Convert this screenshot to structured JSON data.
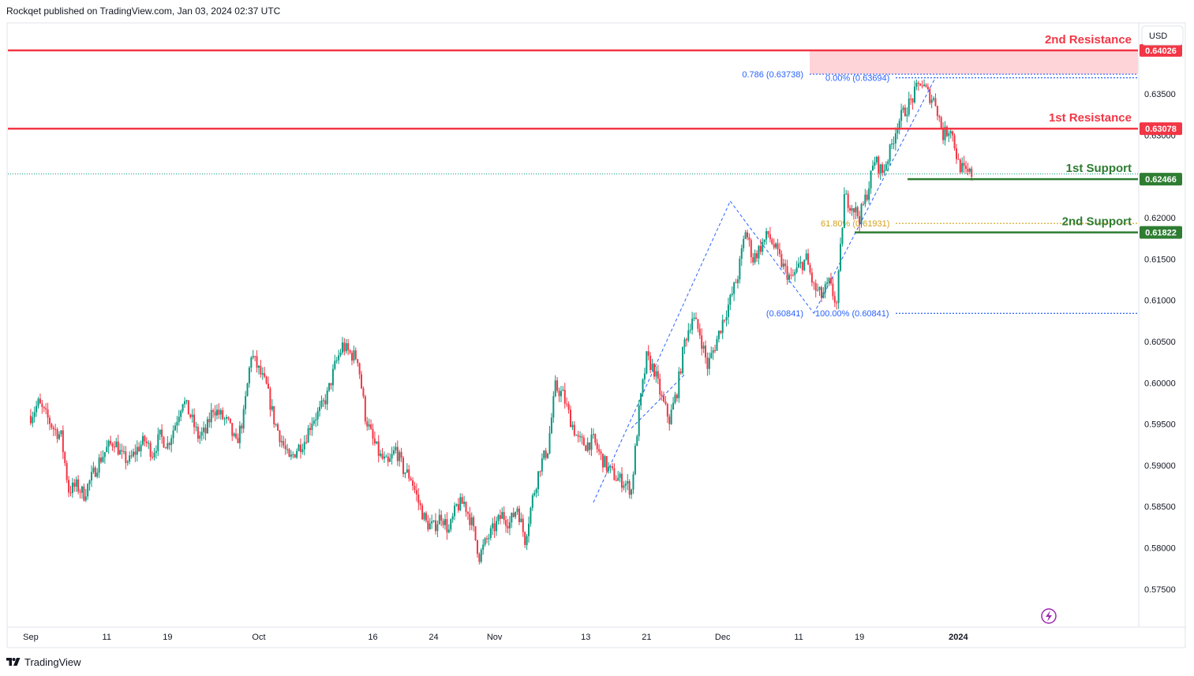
{
  "header": {
    "published_text": "Rockqet published on TradingView.com, Jan 03, 2024 02:37 UTC"
  },
  "footer": {
    "brand": "TradingView"
  },
  "currency_button": "USD",
  "colors": {
    "up": "#089981",
    "down": "#f23645",
    "resistance": "#f23645",
    "support": "#2e7d32",
    "fib_blue": "#2962ff",
    "fib_gold": "#d4a017",
    "zone_fill": "#ffcdd2"
  },
  "icons": {
    "lightning": "lightning-icon",
    "logo": "tradingview-logo-icon"
  },
  "chart_data": {
    "type": "candlestick",
    "symbol_quote": "USD",
    "ylim": [
      0.5705,
      0.6435
    ],
    "y_ticks": [
      "0.63500",
      "0.63000",
      "0.62000",
      "0.61500",
      "0.61000",
      "0.60500",
      "0.60000",
      "0.59500",
      "0.59000",
      "0.58500",
      "0.58000",
      "0.57500"
    ],
    "x_labels": [
      {
        "label": "Sep",
        "date": "2023-09-01"
      },
      {
        "label": "11",
        "date": "2023-09-11"
      },
      {
        "label": "19",
        "date": "2023-09-19"
      },
      {
        "label": "Oct",
        "date": "2023-10-01"
      },
      {
        "label": "16",
        "date": "2023-10-16"
      },
      {
        "label": "24",
        "date": "2023-10-24"
      },
      {
        "label": "Nov",
        "date": "2023-11-01"
      },
      {
        "label": "13",
        "date": "2023-11-13"
      },
      {
        "label": "21",
        "date": "2023-11-21"
      },
      {
        "label": "Dec",
        "date": "2023-12-01"
      },
      {
        "label": "11",
        "date": "2023-12-11"
      },
      {
        "label": "19",
        "date": "2023-12-19"
      },
      {
        "label": "2024",
        "date": "2024-01-01"
      }
    ],
    "levels": [
      {
        "name": "2nd Resistance",
        "value": 0.64026,
        "badge": "0.64026",
        "kind": "resistance"
      },
      {
        "name": "1st Resistance",
        "value": 0.63078,
        "badge": "0.63078",
        "kind": "resistance"
      },
      {
        "name": "1st Support",
        "value": 0.62466,
        "badge": "0.62466",
        "kind": "support"
      },
      {
        "name": "2nd Support",
        "value": 0.61822,
        "badge": "0.61822",
        "kind": "support"
      }
    ],
    "zone": {
      "from": 0.63738,
      "to": 0.64026
    },
    "fib_levels": [
      {
        "label": "0.786 (0.63738)",
        "value": 0.63738
      },
      {
        "label": "0.00% (0.63694)",
        "value": 0.63694
      },
      {
        "label": "61.80% (0.61931)",
        "value": 0.61931
      },
      {
        "label": "(0.60841)",
        "value": 0.60841
      },
      {
        "label": "100.00% (0.60841)",
        "value": 0.60841
      }
    ],
    "last_price": 0.6253,
    "path": [
      [
        "2023-09-01",
        0.596
      ],
      [
        "2023-09-02",
        0.5975
      ],
      [
        "2023-09-03",
        0.596
      ],
      [
        "2023-09-04",
        0.5945
      ],
      [
        "2023-09-05",
        0.5935
      ],
      [
        "2023-09-06",
        0.587
      ],
      [
        "2023-09-07",
        0.5875
      ],
      [
        "2023-09-08",
        0.5865
      ],
      [
        "2023-09-09",
        0.5885
      ],
      [
        "2023-09-10",
        0.5905
      ],
      [
        "2023-09-11",
        0.592
      ],
      [
        "2023-09-12",
        0.593
      ],
      [
        "2023-09-13",
        0.591
      ],
      [
        "2023-09-14",
        0.5905
      ],
      [
        "2023-09-15",
        0.592
      ],
      [
        "2023-09-16",
        0.593
      ],
      [
        "2023-09-17",
        0.5915
      ],
      [
        "2023-09-18",
        0.5935
      ],
      [
        "2023-09-19",
        0.5925
      ],
      [
        "2023-09-20",
        0.595
      ],
      [
        "2023-09-21",
        0.598
      ],
      [
        "2023-09-22",
        0.596
      ],
      [
        "2023-09-23",
        0.5935
      ],
      [
        "2023-09-24",
        0.594
      ],
      [
        "2023-09-25",
        0.597
      ],
      [
        "2023-09-26",
        0.596
      ],
      [
        "2023-09-27",
        0.595
      ],
      [
        "2023-09-28",
        0.5925
      ],
      [
        "2023-09-29",
        0.596
      ],
      [
        "2023-09-30",
        0.6035
      ],
      [
        "2023-10-01",
        0.6015
      ],
      [
        "2023-10-02",
        0.5995
      ],
      [
        "2023-10-03",
        0.5955
      ],
      [
        "2023-10-04",
        0.593
      ],
      [
        "2023-10-05",
        0.5905
      ],
      [
        "2023-10-06",
        0.592
      ],
      [
        "2023-10-07",
        0.593
      ],
      [
        "2023-10-08",
        0.5955
      ],
      [
        "2023-10-09",
        0.5965
      ],
      [
        "2023-10-10",
        0.5985
      ],
      [
        "2023-10-11",
        0.602
      ],
      [
        "2023-10-12",
        0.6045
      ],
      [
        "2023-10-13",
        0.6035
      ],
      [
        "2023-10-14",
        0.603
      ],
      [
        "2023-10-15",
        0.596
      ],
      [
        "2023-10-16",
        0.593
      ],
      [
        "2023-10-17",
        0.591
      ],
      [
        "2023-10-18",
        0.59
      ],
      [
        "2023-10-19",
        0.592
      ],
      [
        "2023-10-20",
        0.5895
      ],
      [
        "2023-10-21",
        0.5885
      ],
      [
        "2023-10-22",
        0.5855
      ],
      [
        "2023-10-23",
        0.583
      ],
      [
        "2023-10-24",
        0.5825
      ],
      [
        "2023-10-25",
        0.584
      ],
      [
        "2023-10-26",
        0.582
      ],
      [
        "2023-10-27",
        0.585
      ],
      [
        "2023-10-28",
        0.5855
      ],
      [
        "2023-10-29",
        0.583
      ],
      [
        "2023-10-30",
        0.579
      ],
      [
        "2023-10-31",
        0.581
      ],
      [
        "2023-11-01",
        0.5825
      ],
      [
        "2023-11-02",
        0.584
      ],
      [
        "2023-11-03",
        0.583
      ],
      [
        "2023-11-04",
        0.585
      ],
      [
        "2023-11-05",
        0.581
      ],
      [
        "2023-11-06",
        0.586
      ],
      [
        "2023-11-07",
        0.59
      ],
      [
        "2023-11-08",
        0.592
      ],
      [
        "2023-11-09",
        0.5995
      ],
      [
        "2023-11-10",
        0.5985
      ],
      [
        "2023-11-11",
        0.5955
      ],
      [
        "2023-11-12",
        0.593
      ],
      [
        "2023-11-13",
        0.5925
      ],
      [
        "2023-11-14",
        0.593
      ],
      [
        "2023-11-15",
        0.591
      ],
      [
        "2023-11-16",
        0.5895
      ],
      [
        "2023-11-17",
        0.5885
      ],
      [
        "2023-11-18",
        0.588
      ],
      [
        "2023-11-19",
        0.587
      ],
      [
        "2023-11-20",
        0.5965
      ],
      [
        "2023-11-21",
        0.603
      ],
      [
        "2023-11-22",
        0.6015
      ],
      [
        "2023-11-23",
        0.598
      ],
      [
        "2023-11-24",
        0.5955
      ],
      [
        "2023-11-25",
        0.599
      ],
      [
        "2023-11-26",
        0.605
      ],
      [
        "2023-11-27",
        0.608
      ],
      [
        "2023-11-28",
        0.606
      ],
      [
        "2023-11-29",
        0.602
      ],
      [
        "2023-11-30",
        0.6045
      ],
      [
        "2023-12-01",
        0.6075
      ],
      [
        "2023-12-02",
        0.61
      ],
      [
        "2023-12-03",
        0.613
      ],
      [
        "2023-12-04",
        0.6185
      ],
      [
        "2023-12-05",
        0.615
      ],
      [
        "2023-12-06",
        0.6165
      ],
      [
        "2023-12-07",
        0.618
      ],
      [
        "2023-12-08",
        0.616
      ],
      [
        "2023-12-09",
        0.614
      ],
      [
        "2023-12-10",
        0.6125
      ],
      [
        "2023-12-11",
        0.614
      ],
      [
        "2023-12-12",
        0.615
      ],
      [
        "2023-12-13",
        0.6115
      ],
      [
        "2023-12-14",
        0.6105
      ],
      [
        "2023-12-15",
        0.612
      ],
      [
        "2023-12-16",
        0.6095
      ],
      [
        "2023-12-17",
        0.6225
      ],
      [
        "2023-12-18",
        0.6215
      ],
      [
        "2023-12-19",
        0.62
      ],
      [
        "2023-12-20",
        0.623
      ],
      [
        "2023-12-21",
        0.627
      ],
      [
        "2023-12-22",
        0.6255
      ],
      [
        "2023-12-23",
        0.628
      ],
      [
        "2023-12-24",
        0.6315
      ],
      [
        "2023-12-25",
        0.633
      ],
      [
        "2023-12-26",
        0.6345
      ],
      [
        "2023-12-27",
        0.6365
      ],
      [
        "2023-12-28",
        0.635
      ],
      [
        "2023-12-29",
        0.634
      ],
      [
        "2023-12-30",
        0.63
      ],
      [
        "2023-12-31",
        0.631
      ],
      [
        "2024-01-01",
        0.6265
      ],
      [
        "2024-01-02",
        0.6253
      ],
      [
        "2024-01-03",
        0.6253
      ]
    ]
  }
}
